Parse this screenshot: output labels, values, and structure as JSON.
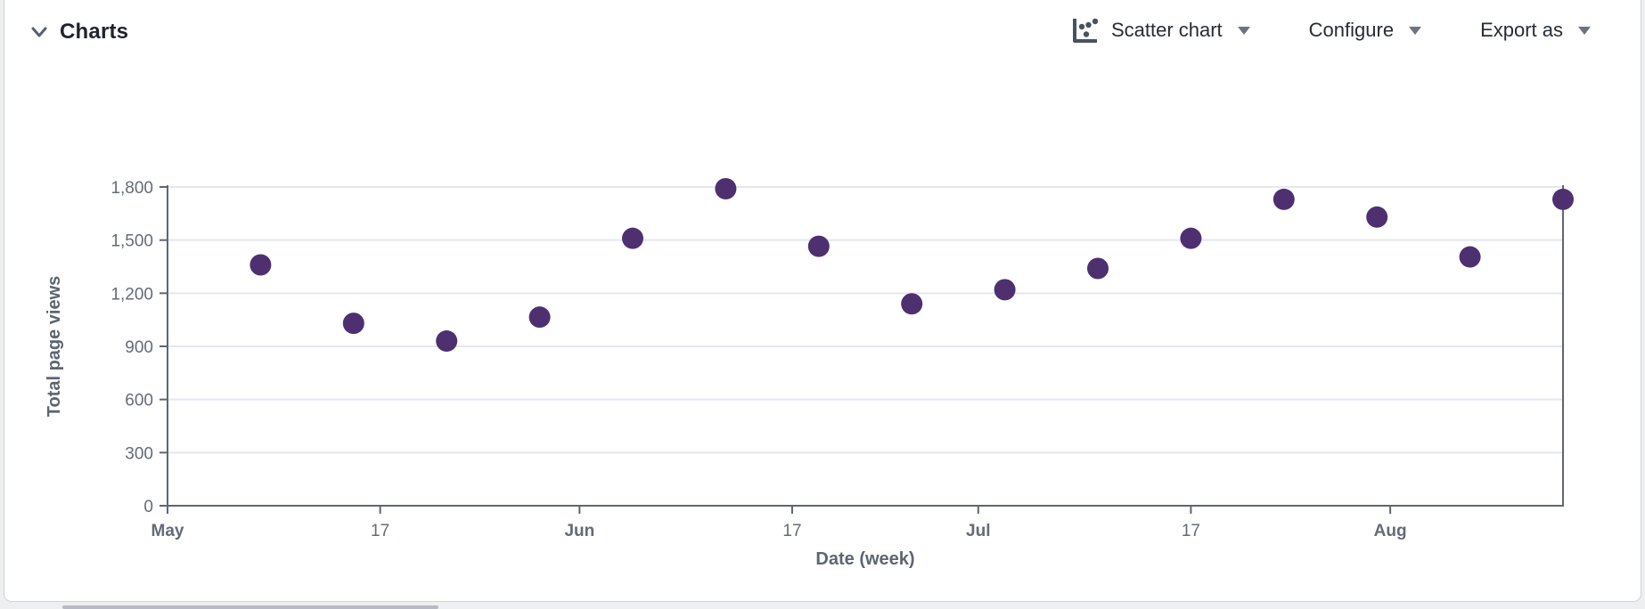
{
  "panel": {
    "title": "Charts"
  },
  "toolbar": {
    "chart_type_label": "Scatter chart",
    "configure_label": "Configure",
    "export_label": "Export as"
  },
  "icons": {
    "collapse": "chevron-down-icon",
    "chart_type": "scatter-chart-icon",
    "dropdown": "caret-down-icon"
  },
  "colors": {
    "point": "#4e3070",
    "grid_line": "#e4e7f0",
    "axis_line": "#5f6670",
    "tick_label": "#646b76",
    "axis_title": "#5d6570",
    "header_text": "#1f232b",
    "toolbar_text": "#272c35",
    "icon_gray": "#4a5260",
    "caret_gray": "#6d7280",
    "card_border": "#cfd3d9",
    "page_background": "#edeff1",
    "bottom_strip": "#b6bac4"
  },
  "chart_data": {
    "type": "scatter",
    "title": "",
    "xlabel": "Date (week)",
    "ylabel": "Total page views",
    "grid": "horizontal",
    "legend": "none",
    "ylim": [
      0,
      1800
    ],
    "y_ticks": [
      0,
      300,
      600,
      900,
      1200,
      1500,
      1800
    ],
    "x_domain_days": [
      0,
      105
    ],
    "x_ticks": [
      {
        "label": "May",
        "day": 0,
        "bold": true
      },
      {
        "label": "17",
        "day": 16,
        "bold": false
      },
      {
        "label": "Jun",
        "day": 31,
        "bold": true
      },
      {
        "label": "17",
        "day": 47,
        "bold": false
      },
      {
        "label": "Jul",
        "day": 61,
        "bold": true
      },
      {
        "label": "17",
        "day": 77,
        "bold": false
      },
      {
        "label": "Aug",
        "day": 92,
        "bold": true
      }
    ],
    "points": [
      {
        "week": 1,
        "day": 7,
        "views": 1360
      },
      {
        "week": 2,
        "day": 14,
        "views": 1030
      },
      {
        "week": 3,
        "day": 21,
        "views": 930
      },
      {
        "week": 4,
        "day": 28,
        "views": 1065
      },
      {
        "week": 5,
        "day": 35,
        "views": 1510
      },
      {
        "week": 6,
        "day": 42,
        "views": 1790
      },
      {
        "week": 7,
        "day": 49,
        "views": 1465
      },
      {
        "week": 8,
        "day": 56,
        "views": 1140
      },
      {
        "week": 9,
        "day": 63,
        "views": 1220
      },
      {
        "week": 10,
        "day": 70,
        "views": 1340
      },
      {
        "week": 11,
        "day": 77,
        "views": 1510
      },
      {
        "week": 12,
        "day": 84,
        "views": 1730
      },
      {
        "week": 13,
        "day": 91,
        "views": 1630
      },
      {
        "week": 14,
        "day": 98,
        "views": 1405
      },
      {
        "week": 15,
        "day": 105,
        "views": 1730
      }
    ]
  }
}
